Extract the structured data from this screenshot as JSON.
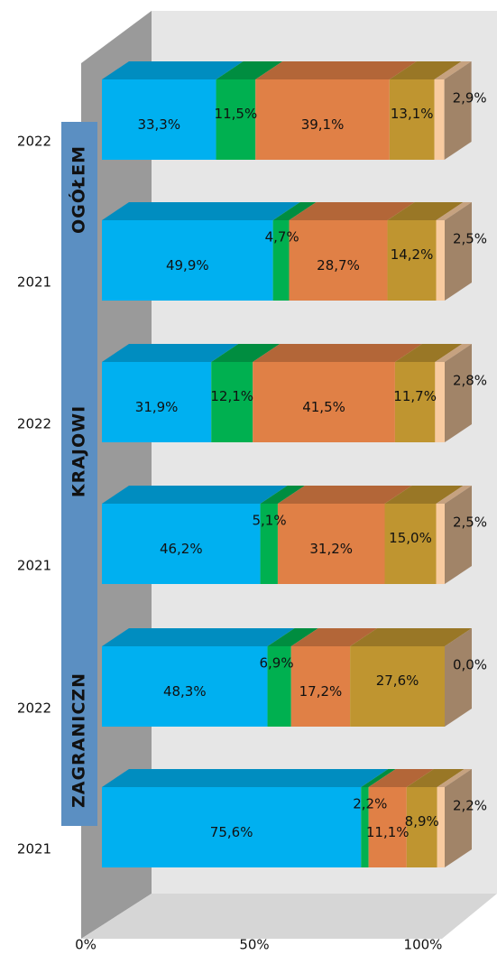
{
  "chart_data": {
    "type": "bar3d-stacked-horizontal",
    "categories": [
      "2022",
      "2021",
      "2022",
      "2021",
      "2022",
      "2021"
    ],
    "groups": [
      "OGÓŁEM",
      "KRAJOWI",
      "ZAGRANICZN"
    ],
    "series": [
      {
        "color": "#00b0f0",
        "values": [
          33.3,
          49.9,
          31.9,
          46.2,
          48.3,
          75.6
        ],
        "value_labels": [
          "33,3%",
          "49,9%",
          "31,9%",
          "46,2%",
          "48,3%",
          "75,6%"
        ]
      },
      {
        "color": "#00b050",
        "values": [
          11.5,
          4.7,
          12.1,
          5.1,
          6.9,
          2.2
        ],
        "value_labels": [
          "11,5%",
          "4,7%",
          "12,1%",
          "5,1%",
          "6,9%",
          "2,2%"
        ]
      },
      {
        "color": "#e08046",
        "values": [
          39.1,
          28.7,
          41.5,
          31.2,
          17.2,
          11.1
        ],
        "value_labels": [
          "39,1%",
          "28,7%",
          "41,5%",
          "31,2%",
          "17,2%",
          "11,1%"
        ]
      },
      {
        "color": "#bf9530",
        "values": [
          13.1,
          14.2,
          11.7,
          15.0,
          27.6,
          8.9
        ],
        "value_labels": [
          "13,1%",
          "14,2%",
          "11,7%",
          "15,0%",
          "27,6%",
          "8,9%"
        ]
      },
      {
        "color": "#f8cba0",
        "values": [
          2.9,
          2.5,
          2.8,
          2.5,
          0.0,
          2.2
        ],
        "value_labels": [
          "2,9%",
          "2,5%",
          "2,8%",
          "2,5%",
          "0,0%",
          "2,2%"
        ]
      }
    ],
    "xlim": [
      0,
      100
    ],
    "xticks": [
      {
        "value": 0,
        "label": "0%"
      },
      {
        "value": 50,
        "label": "50%"
      },
      {
        "value": 100,
        "label": "100%"
      }
    ]
  }
}
